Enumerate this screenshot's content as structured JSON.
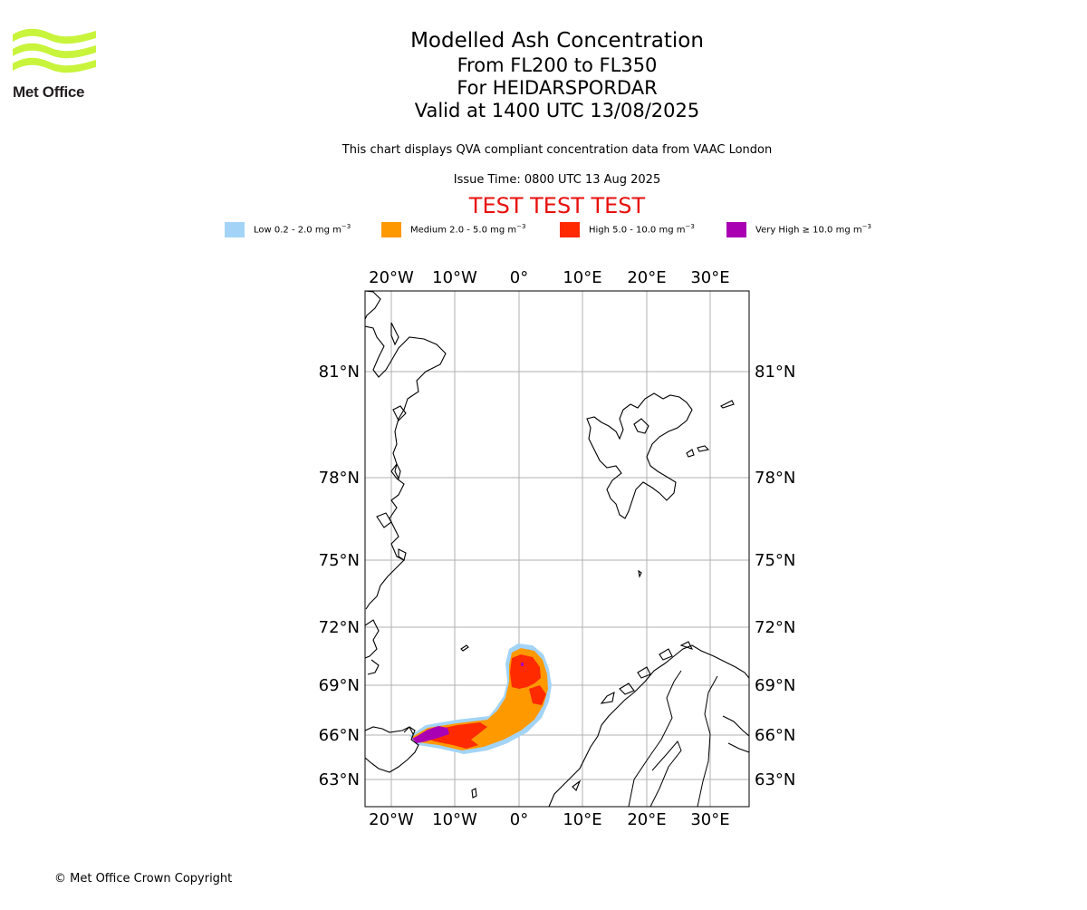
{
  "logo": {
    "text": "Met Office",
    "color": "#c8f43c"
  },
  "title": {
    "line1": "Modelled Ash Concentration",
    "line2": "From FL200 to FL350",
    "line3": "For HEIDARSPORDAR",
    "line4": "Valid at 1400 UTC 13/08/2025"
  },
  "description": "This chart displays QVA compliant concentration data from VAAC London",
  "issue_time": "Issue Time: 0800 UTC 13 Aug 2025",
  "test_banner": "TEST TEST TEST",
  "legend": [
    {
      "label": "Low 0.2 - 2.0 mg m",
      "unit_exp": "−3",
      "color": "#a3d4f7"
    },
    {
      "label": "Medium 2.0 - 5.0 mg m",
      "unit_exp": "−3",
      "color": "#ff9900"
    },
    {
      "label": "High 5.0 - 10.0 mg m",
      "unit_exp": "−3",
      "color": "#ff2a00"
    },
    {
      "label": "Very High  ≥  10.0 mg m",
      "unit_exp": "−3",
      "color": "#aa00b4"
    }
  ],
  "map": {
    "lon_ticks": [
      "20°W",
      "10°W",
      "0°",
      "10°E",
      "20°E",
      "30°E"
    ],
    "lat_ticks": [
      "81°N",
      "78°N",
      "75°N",
      "72°N",
      "69°N",
      "66°N",
      "63°N"
    ],
    "grid": true
  },
  "footer": "© Met Office Crown Copyright"
}
